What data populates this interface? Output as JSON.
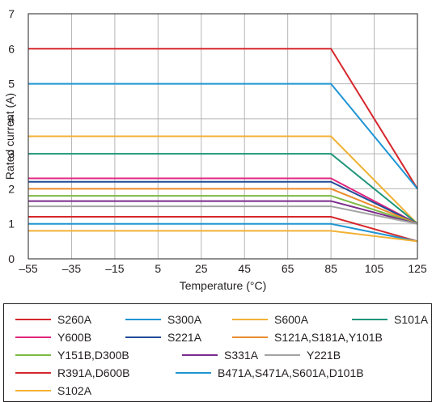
{
  "chart_data": {
    "type": "line",
    "title": "",
    "xlabel": "Temperature (°C)",
    "ylabel": "Rated current (A)",
    "xlim": [
      -55,
      125
    ],
    "ylim": [
      0,
      7
    ],
    "x_ticks": [
      -55,
      -35,
      -15,
      5,
      25,
      45,
      65,
      85,
      105,
      125
    ],
    "x_tick_labels": [
      "–55",
      "–35",
      "–15",
      "5",
      "25",
      "45",
      "65",
      "85",
      "105",
      "125"
    ],
    "y_ticks": [
      0,
      1,
      2,
      3,
      4,
      5,
      6,
      7
    ],
    "grid": true,
    "legend_position": "bottom",
    "series": [
      {
        "name": "S260A",
        "color": "#d6272c",
        "x": [
          -55,
          85,
          125
        ],
        "y": [
          6.0,
          6.0,
          2.0
        ]
      },
      {
        "name": "S300A",
        "color": "#1f95d4",
        "x": [
          -55,
          85,
          125
        ],
        "y": [
          5.0,
          5.0,
          2.0
        ]
      },
      {
        "name": "S600A",
        "color": "#f2b134",
        "x": [
          -55,
          85,
          125
        ],
        "y": [
          3.5,
          3.5,
          1.0
        ]
      },
      {
        "name": "S101A",
        "color": "#1f957a",
        "x": [
          -55,
          85,
          125
        ],
        "y": [
          3.0,
          3.0,
          1.0
        ]
      },
      {
        "name": "Y600B",
        "color": "#e0267f",
        "x": [
          -55,
          85,
          125
        ],
        "y": [
          2.3,
          2.3,
          1.0
        ]
      },
      {
        "name": "S221A",
        "color": "#214c98",
        "x": [
          -55,
          85,
          125
        ],
        "y": [
          2.2,
          2.2,
          1.0
        ]
      },
      {
        "name": "S121A,S181A,Y101B",
        "color": "#eb8c2e",
        "x": [
          -55,
          85,
          125
        ],
        "y": [
          2.0,
          2.0,
          1.0
        ]
      },
      {
        "name": "Y151B,D300B",
        "color": "#7dba45",
        "x": [
          -55,
          85,
          125
        ],
        "y": [
          1.8,
          1.8,
          1.0
        ]
      },
      {
        "name": "S331A",
        "color": "#7b2b8b",
        "x": [
          -55,
          85,
          125
        ],
        "y": [
          1.65,
          1.65,
          1.0
        ]
      },
      {
        "name": "Y221B",
        "color": "#a3a3a3",
        "x": [
          -55,
          85,
          125
        ],
        "y": [
          1.5,
          1.5,
          1.0
        ]
      },
      {
        "name": "R391A,D600B",
        "color": "#d6272c",
        "x": [
          -55,
          85,
          125
        ],
        "y": [
          1.2,
          1.2,
          0.5
        ]
      },
      {
        "name": "B471A,S471A,S601A,D101B",
        "color": "#1f95d4",
        "x": [
          -55,
          85,
          125
        ],
        "y": [
          1.0,
          1.0,
          0.5
        ]
      },
      {
        "name": "S102A",
        "color": "#f2b134",
        "x": [
          -55,
          85,
          125
        ],
        "y": [
          0.8,
          0.8,
          0.5
        ]
      }
    ]
  },
  "legend_rows": [
    [
      0,
      1,
      2,
      3
    ],
    [
      4,
      5,
      6
    ],
    [
      7,
      8,
      9
    ],
    [
      10,
      11
    ],
    [
      12
    ]
  ]
}
